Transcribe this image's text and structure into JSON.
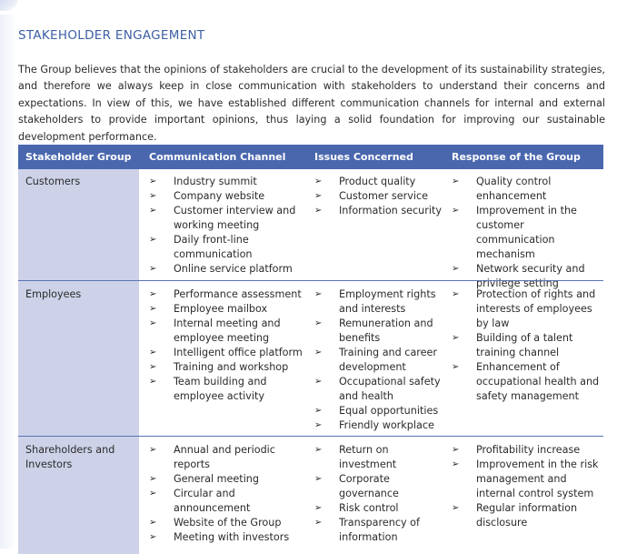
{
  "title": "STAKEHOLDER ENGAGEMENT",
  "intro": "The Group believes that the opinions of stakeholders are crucial to the development of its sustainability strategies, and therefore we always keep in close communication with stakeholders to understand their concerns and expectations. In view of this, we have established different communication channels for internal and external stakeholders to provide important opinions, thus laying a solid foundation for improving our sustainable development performance.",
  "bullet_glyph": "➢",
  "colors": {
    "title": "#3d5fa4",
    "header_bg": "#4a67ae",
    "first_col_bg": "#cdd2e8"
  },
  "table": {
    "headers": [
      "Stakeholder Group",
      "Communication Channel",
      "Issues Concerned",
      "Response of the Group"
    ],
    "rows": [
      {
        "group": "Customers",
        "channels": [
          "Industry summit",
          "Company website",
          "Customer interview and working meeting",
          "Daily front-line communication",
          "Online service platform"
        ],
        "issues": [
          "Product quality",
          "Customer service",
          "Information security"
        ],
        "responses": [
          "Quality control enhancement",
          "Improvement in the customer communication mechanism",
          "Network security and privilege setting"
        ]
      },
      {
        "group": "Employees",
        "channels": [
          "Performance assessment",
          "Employee mailbox",
          "Internal meeting and employee meeting",
          "Intelligent office platform",
          "Training and workshop",
          "Team building and employee activity"
        ],
        "issues": [
          "Employment rights and interests",
          "Remuneration and benefits",
          "Training and career development",
          "Occupational safety and health",
          "Equal opportunities",
          "Friendly workplace"
        ],
        "responses": [
          "Protection of rights and interests of employees by law",
          "Building of a talent training channel",
          "Enhancement of occupational health and safety management"
        ]
      },
      {
        "group": "Shareholders and Investors",
        "channels": [
          "Annual and periodic reports",
          "General meeting",
          "Circular and announcement",
          "Website of the Group",
          "Meeting with investors"
        ],
        "issues": [
          "Return on investment",
          "Corporate governance",
          "Risk control",
          "Transparency of information"
        ],
        "responses": [
          "Profitability increase",
          "Improvement in the risk management and internal control system",
          "Regular information disclosure"
        ]
      }
    ]
  }
}
